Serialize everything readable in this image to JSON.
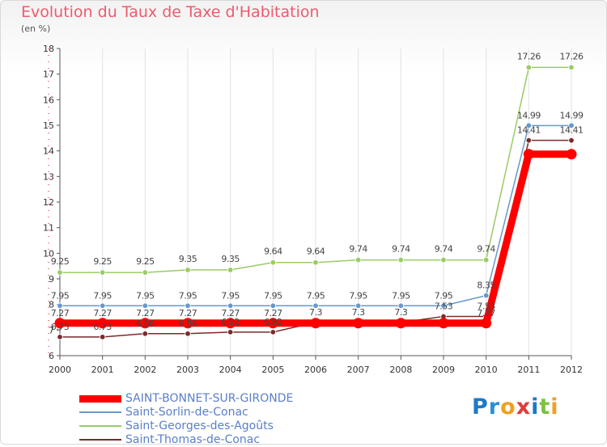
{
  "title": "Evolution du Taux de Taxe d'Habitation",
  "subtitle": "(en %)",
  "logo": {
    "letters": [
      {
        "ch": "P",
        "color": "#1f78c8"
      },
      {
        "ch": "r",
        "color": "#2a8fd8"
      },
      {
        "ch": "o",
        "color": "#f0a01e"
      },
      {
        "ch": "x",
        "color": "#e03a3a"
      },
      {
        "ch": "i",
        "color": "#1f78c8"
      },
      {
        "ch": "t",
        "color": "#7cc143"
      },
      {
        "ch": "i",
        "color": "#f0a01e"
      }
    ]
  },
  "chart_data": {
    "type": "line",
    "title": "Evolution du Taux de Taxe d'Habitation",
    "ylabel": "(en %)",
    "xlabel": "",
    "x": [
      "2000",
      "2001",
      "2002",
      "2003",
      "2004",
      "2005",
      "2006",
      "2007",
      "2008",
      "2009",
      "2010",
      "2011",
      "2012"
    ],
    "ylim": [
      6,
      18
    ],
    "yticks": [
      "6",
      "7",
      "8",
      "9",
      "10",
      "11",
      "12",
      "13",
      "14",
      "15",
      "16",
      "17",
      "18"
    ],
    "grid": "vertical",
    "legend_position": "bottom-left",
    "series": [
      {
        "name": "SAINT-BONNET-SUR-GIRONDE",
        "color": "#ff0000",
        "values": [
          7.27,
          7.27,
          7.27,
          7.27,
          7.27,
          7.27,
          7.27,
          7.27,
          7.27,
          7.27,
          7.27,
          13.87,
          13.87
        ],
        "labels": [
          "7.27",
          "7.27",
          "7.27",
          "7.27",
          "7.27",
          "7.27",
          "",
          "",
          "",
          "",
          "7.27",
          "",
          ""
        ]
      },
      {
        "name": "Saint-Sorlin-de-Conac",
        "color": "#6699cc",
        "values": [
          7.95,
          7.95,
          7.95,
          7.95,
          7.95,
          7.95,
          7.95,
          7.95,
          7.95,
          7.95,
          8.35,
          14.99,
          14.99
        ],
        "labels": [
          "7.95",
          "7.95",
          "7.95",
          "7.95",
          "7.95",
          "7.95",
          "7.95",
          "7.95",
          "7.95",
          "7.95",
          "8.35",
          "14.99",
          "14.99"
        ]
      },
      {
        "name": "Saint-Georges-des-Agoûts",
        "color": "#99cc66",
        "values": [
          9.25,
          9.25,
          9.25,
          9.35,
          9.35,
          9.64,
          9.64,
          9.74,
          9.74,
          9.74,
          9.74,
          17.26,
          17.26
        ],
        "labels": [
          "9.25",
          "9.25",
          "9.25",
          "9.35",
          "9.35",
          "9.64",
          "9.64",
          "9.74",
          "9.74",
          "9.74",
          "9.74",
          "17.26",
          "17.26"
        ]
      },
      {
        "name": "Saint-Thomas-de-Conac",
        "color": "#7a2b2b",
        "values": [
          6.73,
          6.73,
          6.86,
          6.86,
          6.92,
          6.92,
          7.3,
          7.3,
          7.3,
          7.53,
          7.53,
          14.41,
          14.41
        ],
        "labels": [
          "6.73",
          "6.73",
          "6.86",
          "6.86",
          "6.92",
          "6.92",
          "7.3",
          "7.3",
          "7.3",
          "7.53",
          "7.53",
          "14.41",
          "14.41"
        ]
      }
    ]
  }
}
